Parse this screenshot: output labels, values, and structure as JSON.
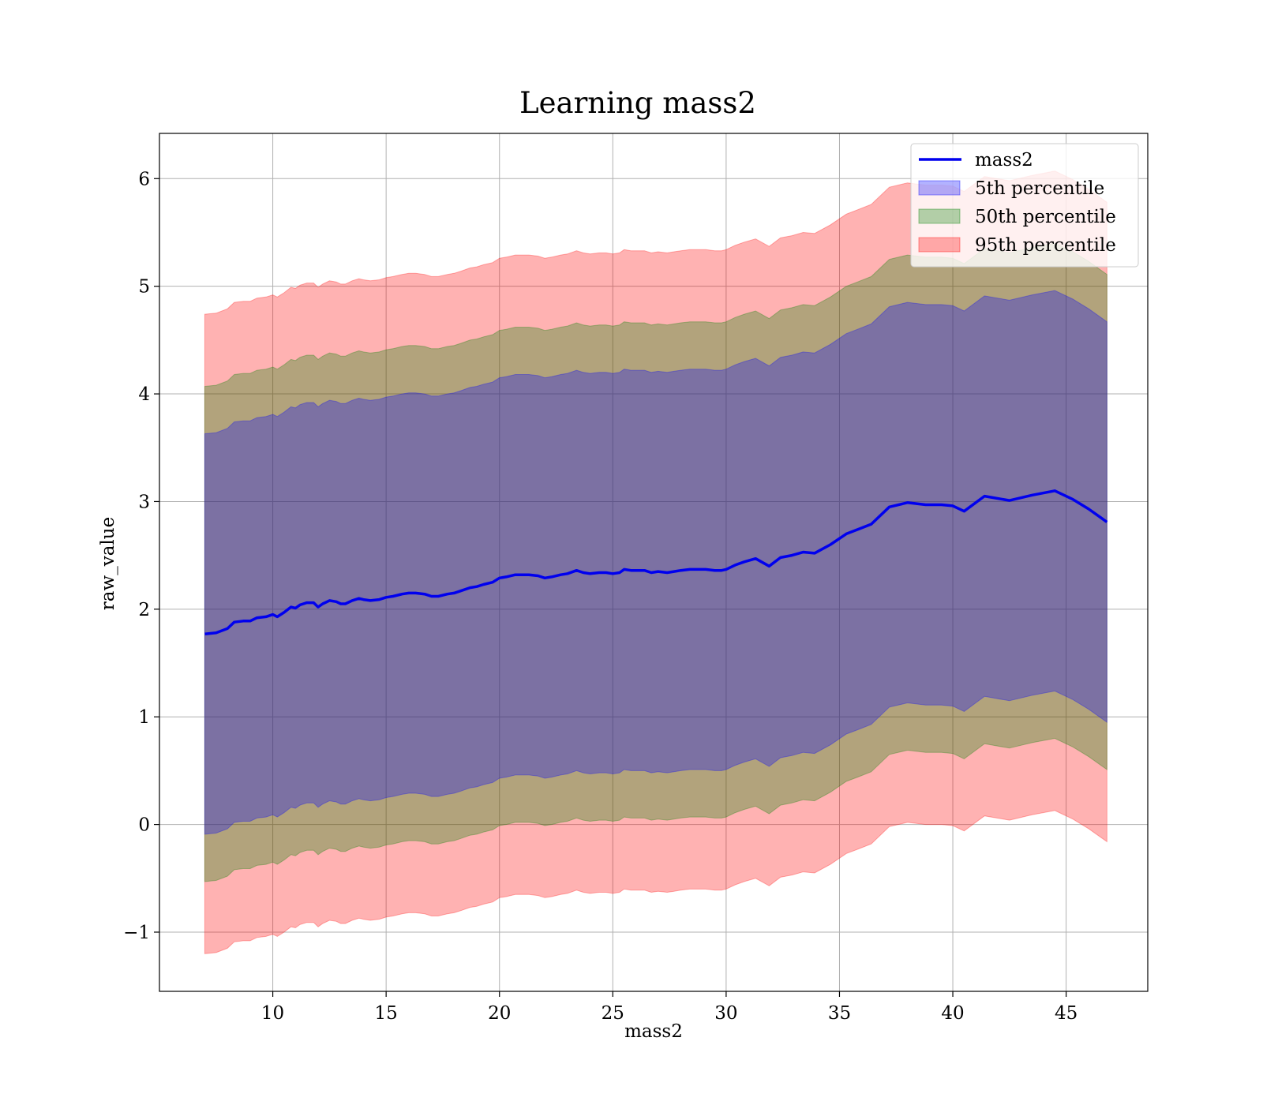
{
  "chart_data": {
    "type": "line",
    "title": "Learning mass2",
    "xlabel": "mass2",
    "ylabel": "raw_value",
    "xlim": [
      5.0,
      48.6
    ],
    "ylim": [
      -1.55,
      6.42
    ],
    "xticks": [
      10,
      15,
      20,
      25,
      30,
      35,
      40,
      45
    ],
    "xtick_labels": [
      "10",
      "15",
      "20",
      "25",
      "30",
      "35",
      "40",
      "45"
    ],
    "yticks": [
      -1,
      0,
      1,
      2,
      3,
      4,
      5,
      6
    ],
    "ytick_labels": [
      "−1",
      "0",
      "1",
      "2",
      "3",
      "4",
      "5",
      "6"
    ],
    "grid": true,
    "legend_position": "top-right",
    "x": [
      7.0,
      7.5,
      8.0,
      8.3,
      8.7,
      9.0,
      9.3,
      9.7,
      10.0,
      10.2,
      10.5,
      10.8,
      11.0,
      11.2,
      11.5,
      11.8,
      12.0,
      12.2,
      12.5,
      12.8,
      13.0,
      13.2,
      13.5,
      13.8,
      14.0,
      14.3,
      14.7,
      15.0,
      15.3,
      15.7,
      16.0,
      16.3,
      16.7,
      17.0,
      17.3,
      17.7,
      18.0,
      18.3,
      18.7,
      19.0,
      19.3,
      19.7,
      20.0,
      20.3,
      20.7,
      21.0,
      21.3,
      21.7,
      22.0,
      22.3,
      22.7,
      23.0,
      23.4,
      23.7,
      24.0,
      24.4,
      24.7,
      25.0,
      25.3,
      25.5,
      25.8,
      26.0,
      26.4,
      26.7,
      27.0,
      27.4,
      27.7,
      28.0,
      28.4,
      28.8,
      29.1,
      29.5,
      29.8,
      30.0,
      30.4,
      30.8,
      31.3,
      31.9,
      32.4,
      32.9,
      33.4,
      33.9,
      34.6,
      35.3,
      35.8,
      36.4,
      37.2,
      38.0,
      38.8,
      39.5,
      40.0,
      40.5,
      41.4,
      42.5,
      43.5,
      44.5,
      45.3,
      46.0,
      46.8
    ],
    "series": [
      {
        "name": "mass2",
        "color": "#0000ee",
        "values": [
          1.77,
          1.78,
          1.82,
          1.88,
          1.89,
          1.89,
          1.92,
          1.93,
          1.95,
          1.93,
          1.97,
          2.02,
          2.01,
          2.04,
          2.06,
          2.06,
          2.02,
          2.05,
          2.08,
          2.07,
          2.05,
          2.05,
          2.08,
          2.1,
          2.09,
          2.08,
          2.09,
          2.11,
          2.12,
          2.14,
          2.15,
          2.15,
          2.14,
          2.12,
          2.12,
          2.14,
          2.15,
          2.17,
          2.2,
          2.21,
          2.23,
          2.25,
          2.29,
          2.3,
          2.32,
          2.32,
          2.32,
          2.31,
          2.29,
          2.3,
          2.32,
          2.33,
          2.36,
          2.34,
          2.33,
          2.34,
          2.34,
          2.33,
          2.34,
          2.37,
          2.36,
          2.36,
          2.36,
          2.34,
          2.35,
          2.34,
          2.35,
          2.36,
          2.37,
          2.37,
          2.37,
          2.36,
          2.36,
          2.37,
          2.41,
          2.44,
          2.47,
          2.4,
          2.48,
          2.5,
          2.53,
          2.52,
          2.6,
          2.7,
          2.74,
          2.79,
          2.95,
          2.99,
          2.97,
          2.97,
          2.96,
          2.91,
          3.05,
          3.01,
          3.06,
          3.1,
          3.02,
          2.93,
          2.81
        ]
      }
    ],
    "bands": [
      {
        "name": "5th percentile",
        "color": "#0000ff",
        "opacity": 0.3,
        "half_width": 1.86
      },
      {
        "name": "50th percentile",
        "color": "#008000",
        "opacity": 0.3,
        "half_width": 2.3
      },
      {
        "name": "95th percentile",
        "color": "#ff0000",
        "opacity": 0.3,
        "half_width": 2.97
      }
    ]
  }
}
